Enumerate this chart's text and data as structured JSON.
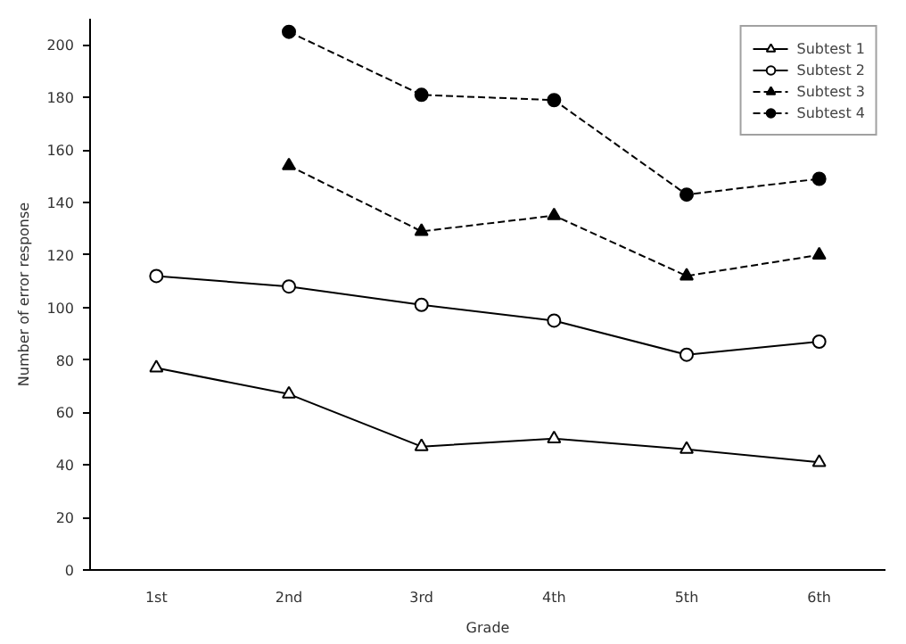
{
  "chart_data": {
    "type": "line",
    "xlabel": "Grade",
    "ylabel": "Number of error response",
    "categories": [
      "1st",
      "2nd",
      "3rd",
      "4th",
      "5th",
      "6th"
    ],
    "ylim": [
      0,
      210
    ],
    "yticks": [
      0,
      20,
      40,
      60,
      80,
      100,
      120,
      140,
      160,
      180,
      200
    ],
    "grid": false,
    "legend": "top right",
    "series": [
      {
        "name": "Subtest 1",
        "color": "#000000",
        "marker": "triangle",
        "line_style": "solid",
        "values": [
          77,
          67,
          47,
          50,
          46,
          41
        ]
      },
      {
        "name": "Subtest 2",
        "color": "#000000",
        "marker": "circle",
        "line_style": "solid",
        "values": [
          112,
          108,
          101,
          95,
          82,
          87
        ]
      },
      {
        "name": "Subtest 3",
        "color": "#000000",
        "marker": "triangle",
        "line_style": "dashed",
        "values": [
          null,
          154,
          129,
          135,
          112,
          120
        ]
      },
      {
        "name": "Subtest 4",
        "color": "#000000",
        "marker": "circle",
        "line_style": "dashed",
        "values": [
          null,
          205,
          181,
          179,
          143,
          149
        ]
      }
    ]
  }
}
